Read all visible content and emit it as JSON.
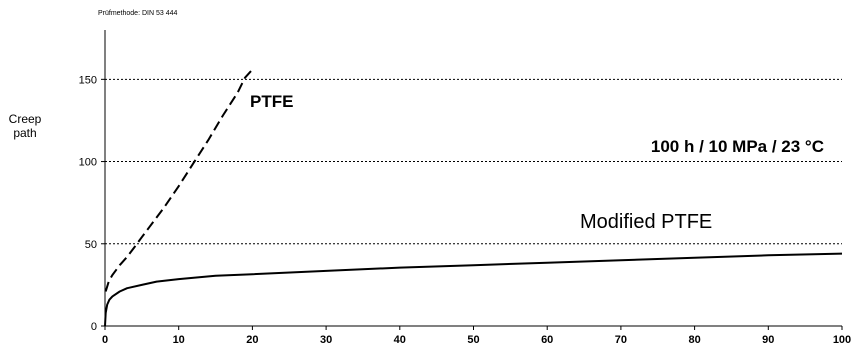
{
  "chart_data": {
    "type": "line",
    "note": "Prüfmethode: DIN 53 444",
    "ylabel": "Creep path",
    "xlabel": "",
    "xlim": [
      0,
      100
    ],
    "ylim": [
      0,
      180
    ],
    "xticks": [
      0,
      10,
      20,
      30,
      40,
      50,
      60,
      70,
      80,
      90,
      100
    ],
    "yticks": [
      0,
      50,
      100,
      150
    ],
    "grid": "horizontal-dashed",
    "annotations": {
      "conditions": "100 h  /  10 MPa  /  23 °C",
      "ptfe_label": "PTFE",
      "modified_label": "Modified PTFE"
    },
    "series": [
      {
        "name": "PTFE",
        "style": "dashed",
        "x": [
          0.1,
          0.5,
          1,
          2,
          3,
          4,
          5,
          6,
          8,
          10,
          12,
          14,
          16,
          18,
          19,
          20
        ],
        "y": [
          21,
          27,
          31,
          37,
          42,
          48,
          54,
          60,
          72,
          85,
          99,
          113,
          128,
          142,
          151,
          156
        ]
      },
      {
        "name": "Modified PTFE",
        "style": "solid",
        "x": [
          0,
          0.1,
          0.3,
          0.6,
          1,
          2,
          3,
          5,
          7,
          10,
          15,
          20,
          30,
          40,
          50,
          60,
          70,
          80,
          90,
          100
        ],
        "y": [
          0,
          8,
          13,
          16,
          18,
          21,
          23,
          25,
          27,
          28.5,
          30.5,
          31.5,
          33.5,
          35.5,
          37,
          38.5,
          40,
          41.5,
          43,
          44
        ]
      }
    ],
    "colors": {
      "line": "#000000",
      "grid": "#000000"
    }
  }
}
